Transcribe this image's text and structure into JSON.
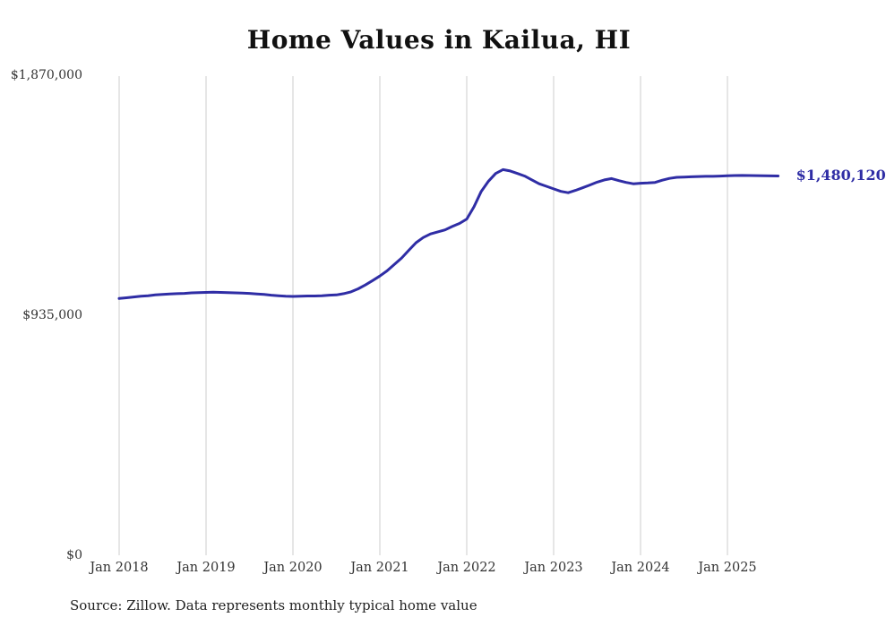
{
  "colors": {
    "line": "#2f2da5",
    "grid": "#cccccc",
    "axis_text": "#333333",
    "title_text": "#111111"
  },
  "chart_data": {
    "type": "line",
    "title": "Home Values in Kailua, HI",
    "source": "Source: Zillow. Data represents monthly typical home value",
    "xlabel": "",
    "ylabel": "",
    "unit": "USD",
    "x_start_month": "2018-01",
    "x_end_month": "2025-08",
    "x_tick_labels": [
      "Jan 2018",
      "Jan 2019",
      "Jan 2020",
      "Jan 2021",
      "Jan 2022",
      "Jan 2023",
      "Jan 2024",
      "Jan 2025"
    ],
    "y_tick_labels": [
      "$1,870,000",
      "$935,000",
      "$0"
    ],
    "y_tick_values": [
      1870000,
      935000,
      0
    ],
    "ylim": [
      0,
      1870000
    ],
    "grid": "vertical-only",
    "legend": "none",
    "end_value": 1480120,
    "end_value_label": "$1,480,120",
    "series": [
      {
        "name": "Typical home value",
        "monthly_values": [
          1002000,
          1005000,
          1008000,
          1011000,
          1013000,
          1016000,
          1018000,
          1020000,
          1021000,
          1022000,
          1024000,
          1025000,
          1026000,
          1027000,
          1026000,
          1025000,
          1024000,
          1023000,
          1022000,
          1020000,
          1018000,
          1015000,
          1013000,
          1011000,
          1010000,
          1011000,
          1012000,
          1012000,
          1013000,
          1015000,
          1016000,
          1021000,
          1028000,
          1040000,
          1055000,
          1072000,
          1090000,
          1110000,
          1135000,
          1160000,
          1190000,
          1220000,
          1240000,
          1254000,
          1262000,
          1270000,
          1283000,
          1295000,
          1312000,
          1360000,
          1420000,
          1460000,
          1490000,
          1505000,
          1500000,
          1490000,
          1480000,
          1465000,
          1450000,
          1440000,
          1430000,
          1420000,
          1415000,
          1424000,
          1434000,
          1445000,
          1456000,
          1465000,
          1470000,
          1462000,
          1455000,
          1450000,
          1452000,
          1453000,
          1455000,
          1464000,
          1471000,
          1475000,
          1476000,
          1477000,
          1478000,
          1479000,
          1479000,
          1480000,
          1481000,
          1482000,
          1482500,
          1482000,
          1481500,
          1481000,
          1480500,
          1480120
        ]
      }
    ]
  }
}
